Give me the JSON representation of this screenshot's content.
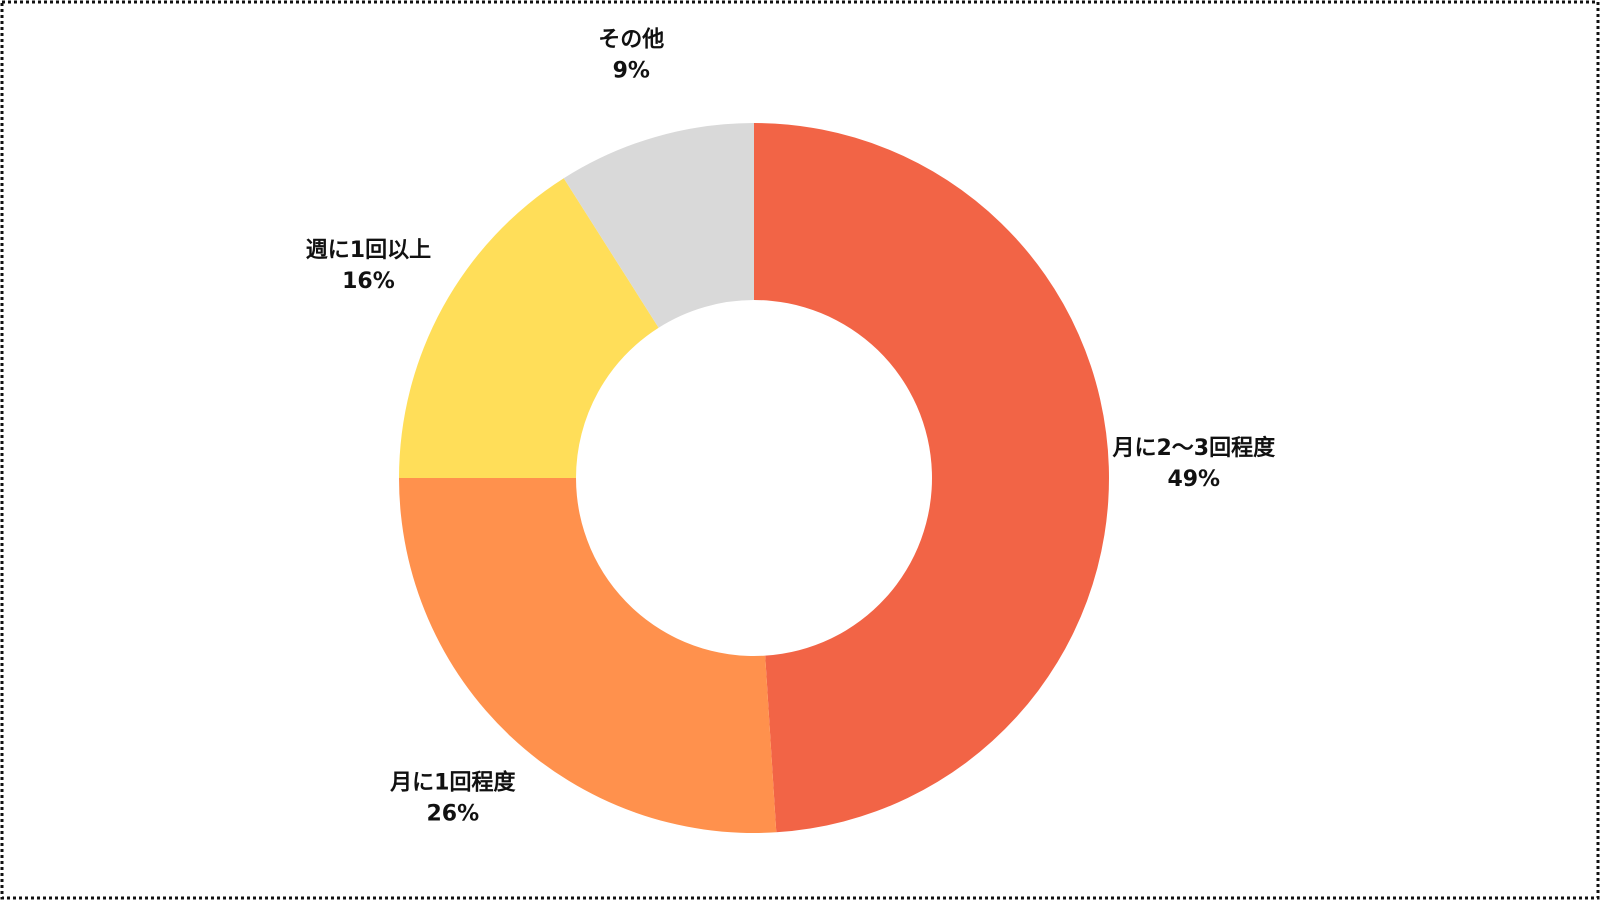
{
  "chart_data": {
    "type": "donut",
    "categories": [
      "月に2〜3回程度",
      "月に1回程度",
      "週に1回以上",
      "その他"
    ],
    "values": [
      49,
      26,
      16,
      9
    ],
    "value_labels": [
      "49%",
      "26%",
      "16%",
      "9%"
    ],
    "colors": [
      "#f26446",
      "#ff914d",
      "#ffde59",
      "#d9d9d9"
    ]
  }
}
